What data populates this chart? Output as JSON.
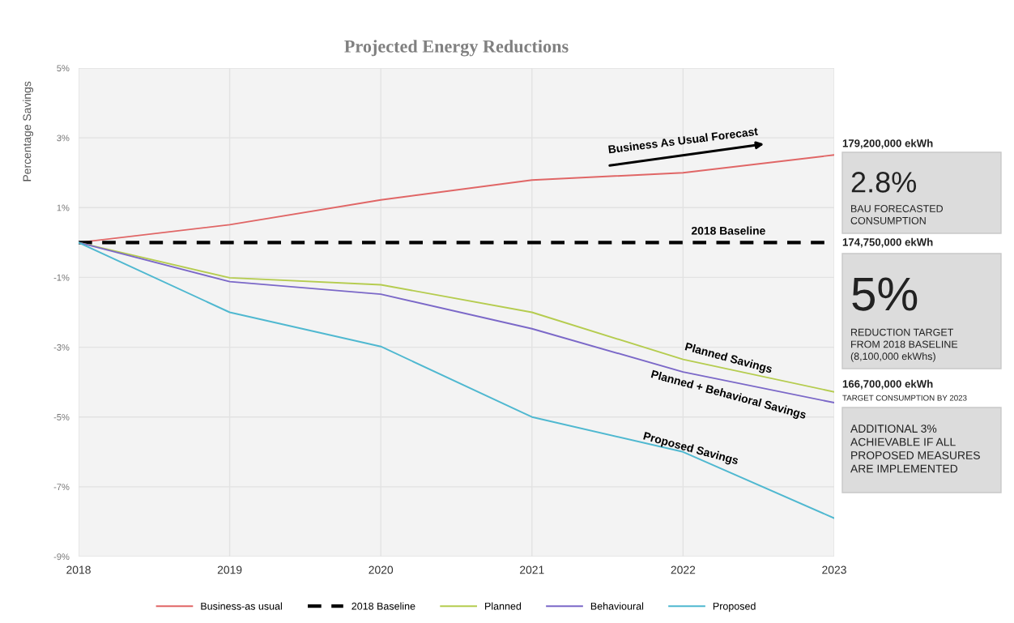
{
  "chart_data": {
    "type": "line",
    "title": "Projected Energy Reductions",
    "ylabel": "Percentage Savings",
    "x": [
      2018,
      2019,
      2020,
      2021,
      2022,
      2023
    ],
    "series": [
      {
        "name": "Business-as usual",
        "color": "#e06666",
        "values": [
          0,
          0.51,
          1.22,
          1.79,
          2.0,
          2.51
        ]
      },
      {
        "name": "2018 Baseline",
        "color": "#000000",
        "line_style": "dashed",
        "values": [
          0,
          0,
          0,
          0,
          0,
          0
        ]
      },
      {
        "name": "Planned",
        "color": "#b5cc4f",
        "values": [
          0,
          -1.01,
          -1.21,
          -2.0,
          -3.35,
          -4.28
        ]
      },
      {
        "name": "Behavioural",
        "color": "#7b68c8",
        "values": [
          0,
          -1.12,
          -1.48,
          -2.47,
          -3.71,
          -4.59
        ]
      },
      {
        "name": "Proposed",
        "color": "#4fb8d0",
        "values": [
          0,
          -2.0,
          -2.98,
          -5.0,
          -6.0,
          -7.9
        ]
      }
    ],
    "xlim": [
      2018,
      2023
    ],
    "xticks": [
      2018,
      2019,
      2020,
      2021,
      2022,
      2023
    ],
    "ylim": [
      -9,
      5
    ],
    "yticks": [
      {
        "value": -9,
        "label": "-9%"
      },
      {
        "value": -7,
        "label": "-7%"
      },
      {
        "value": -5,
        "label": "-5%"
      },
      {
        "value": -3,
        "label": "-3%"
      },
      {
        "value": -1,
        "label": "-1%"
      },
      {
        "value": 1,
        "label": "1%"
      },
      {
        "value": 3,
        "label": "3%"
      },
      {
        "value": 5,
        "label": "5%"
      }
    ],
    "grid": true,
    "legend": "bottom",
    "marker": "none",
    "annotations": [
      "Business As Usual Forecast",
      "2018 Baseline",
      "Planned Savings",
      "Planned + Behavioral Savings",
      "Proposed Savings",
      "179,200,000 ekWh",
      "2.8%",
      "BAU FORECASTED\nCONSUMPTION",
      "174,750,000 ekWh",
      "5%",
      "REDUCTION TARGET\nFROM 2018 BASELINE\n(8,100,000 ekWhs)",
      "166,700,000 ekWh",
      "TARGET CONSUMPTION BY 2023",
      "ADDITIONAL 3%\nACHIEVABLE IF ALL\nPROPOSED MEASURES\nARE IMPLEMENTED"
    ]
  }
}
